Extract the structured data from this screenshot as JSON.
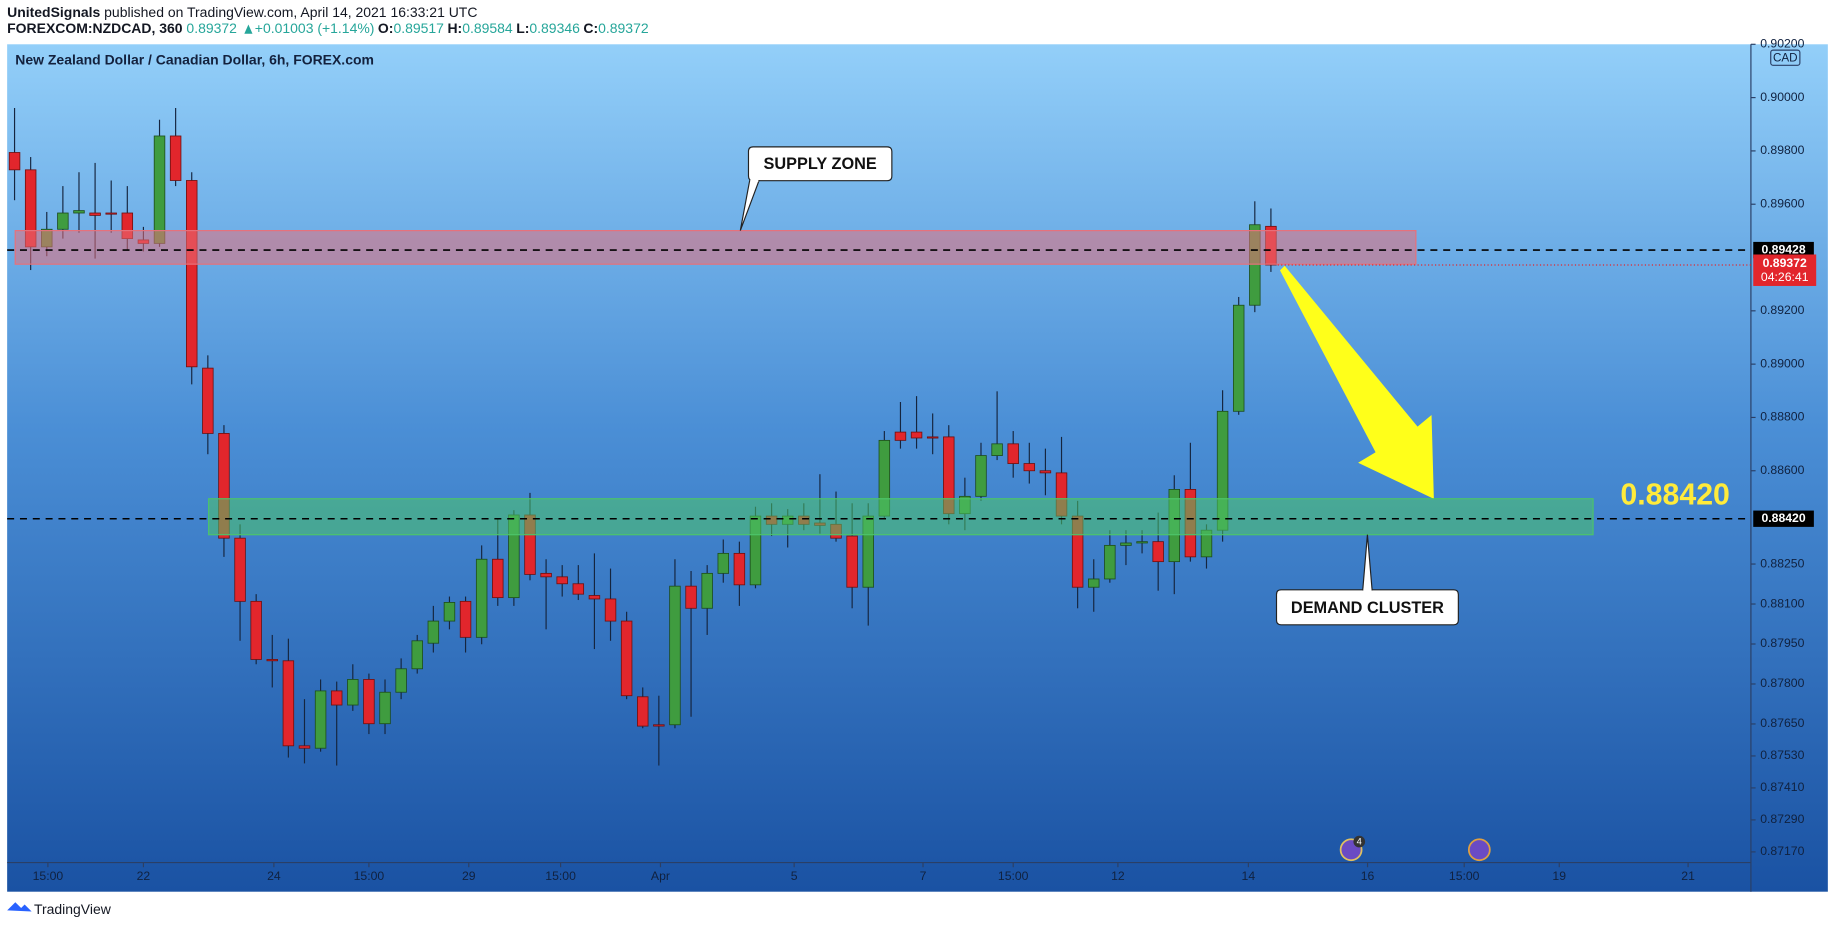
{
  "header": {
    "publisher": "UnitedSignals",
    "published": "published on TradingView.com, April 14, 2021 16:33:21 UTC",
    "symbol": "FOREXCOM:NZDCAD, 360",
    "last": "0.89372",
    "change": "+0.01003 (+1.14%)",
    "ohlc": [
      {
        "key": "O:",
        "value": "0.89517"
      },
      {
        "key": "H:",
        "value": "0.89584"
      },
      {
        "key": "L:",
        "value": "0.89346"
      },
      {
        "key": "C:",
        "value": "0.89372"
      }
    ]
  },
  "chart_data": {
    "type": "candlestick",
    "title": "New Zealand Dollar / Canadian Dollar, 6h, FOREX.com",
    "currency": "CAD",
    "up_color": "#3f9c3f",
    "down_color": "#e2262c",
    "open": [
      0.89794,
      0.89729,
      0.8944,
      0.89506,
      0.89567,
      0.89567,
      0.89567,
      0.89567,
      0.89466,
      0.89453,
      0.89856,
      0.89689,
      0.88985,
      0.8874,
      0.88347,
      0.8811,
      0.87892,
      0.87887,
      0.87568,
      0.87559,
      0.87774,
      0.87721,
      0.87817,
      0.87651,
      0.87769,
      0.87857,
      0.87953,
      0.88036,
      0.8811,
      0.87975,
      0.88268,
      0.88124,
      0.88434,
      0.88215,
      0.88202,
      0.88176,
      0.88132,
      0.88119,
      0.88036,
      0.87752,
      0.87647,
      0.87647,
      0.88167,
      0.88084,
      0.88215,
      0.8829,
      0.88172,
      0.8843,
      0.88399,
      0.8843,
      0.88404,
      0.88399,
      0.88355,
      0.88163,
      0.8843,
      0.88745,
      0.88745,
      0.88727,
      0.88727,
      0.88439,
      0.88504,
      0.88657,
      0.88701,
      0.88627,
      0.886,
      0.88592,
      0.8843,
      0.88163,
      0.88194,
      0.8832,
      0.88329,
      0.88334,
      0.88259,
      0.8853,
      0.88277,
      0.88377,
      0.88823,
      0.89221,
      0.89517
    ],
    "high": [
      0.89961,
      0.89777,
      0.89571,
      0.89668,
      0.8972,
      0.89755,
      0.89689,
      0.89668,
      0.89515,
      0.89917,
      0.89961,
      0.8972,
      0.89033,
      0.88771,
      0.88399,
      0.88137,
      0.87984,
      0.8797,
      0.87743,
      0.87817,
      0.87809,
      0.87874,
      0.87839,
      0.87817,
      0.87896,
      0.87984,
      0.88093,
      0.88128,
      0.88128,
      0.8832,
      0.88421,
      0.88452,
      0.88517,
      0.88268,
      0.88246,
      0.88246,
      0.8829,
      0.88233,
      0.88071,
      0.87787,
      0.87756,
      0.88268,
      0.88224,
      0.88246,
      0.88342,
      0.88334,
      0.88465,
      0.88478,
      0.88456,
      0.88478,
      0.88587,
      0.88522,
      0.88478,
      0.88478,
      0.88749,
      0.88858,
      0.8888,
      0.88815,
      0.88771,
      0.88574,
      0.88705,
      0.88898,
      0.88749,
      0.88705,
      0.88683,
      0.88727,
      0.88487,
      0.88268,
      0.88377,
      0.88377,
      0.88377,
      0.88443,
      0.88583,
      0.88705,
      0.88399,
      0.88902,
      0.89252,
      0.89611,
      0.89584
    ],
    "low": [
      0.89615,
      0.89353,
      0.89405,
      0.89471,
      0.89493,
      0.89396,
      0.89493,
      0.89427,
      0.89423,
      0.8944,
      0.89668,
      0.88924,
      0.88662,
      0.88277,
      0.87962,
      0.87874,
      0.87787,
      0.87524,
      0.87502,
      0.87546,
      0.87494,
      0.87699,
      0.87612,
      0.87612,
      0.87743,
      0.87839,
      0.87918,
      0.88005,
      0.87918,
      0.87949,
      0.88093,
      0.88093,
      0.88189,
      0.88005,
      0.88128,
      0.88115,
      0.87931,
      0.87962,
      0.87743,
      0.87634,
      0.87494,
      0.87634,
      0.87677,
      0.87984,
      0.8818,
      0.88093,
      0.88159,
      0.88355,
      0.88312,
      0.88377,
      0.88364,
      0.88334,
      0.88084,
      0.88019,
      0.88421,
      0.88683,
      0.88683,
      0.88662,
      0.88399,
      0.88377,
      0.88487,
      0.8864,
      0.88574,
      0.88552,
      0.88508,
      0.88399,
      0.88084,
      0.88071,
      0.8818,
      0.88246,
      0.8829,
      0.8815,
      0.88137,
      0.88259,
      0.88233,
      0.88334,
      0.8881,
      0.89195,
      0.89346
    ],
    "close": [
      0.89729,
      0.8944,
      0.89506,
      0.89567,
      0.89576,
      0.89558,
      0.89563,
      0.89471,
      0.89453,
      0.89856,
      0.89689,
      0.8899,
      0.8874,
      0.88347,
      0.8811,
      0.87892,
      0.87887,
      0.87568,
      0.87559,
      0.87774,
      0.87721,
      0.87817,
      0.87651,
      0.87769,
      0.87857,
      0.87962,
      0.88036,
      0.88106,
      0.87975,
      0.88268,
      0.88124,
      0.88434,
      0.88211,
      0.88202,
      0.88176,
      0.88137,
      0.88119,
      0.88036,
      0.87756,
      0.87642,
      0.87642,
      0.88167,
      0.88084,
      0.88215,
      0.8829,
      0.88172,
      0.8843,
      0.88399,
      0.8843,
      0.88399,
      0.88395,
      0.88347,
      0.88163,
      0.8843,
      0.88714,
      0.88714,
      0.88723,
      0.88723,
      0.88439,
      0.88504,
      0.88657,
      0.88701,
      0.88627,
      0.886,
      0.88592,
      0.8843,
      0.88163,
      0.88194,
      0.8832,
      0.88329,
      0.88334,
      0.88259,
      0.8853,
      0.88277,
      0.88377,
      0.88823,
      0.89221,
      0.89523,
      0.89372
    ],
    "xlim": [
      -0.46,
      107.8
    ],
    "xticks": [
      {
        "value": 2.07,
        "label": "15:00"
      },
      {
        "value": 8,
        "label": "22"
      },
      {
        "value": 16.1,
        "label": "24"
      },
      {
        "value": 22,
        "label": "15:00"
      },
      {
        "value": 28.2,
        "label": "29"
      },
      {
        "value": 33.9,
        "label": "15:00"
      },
      {
        "value": 40.1,
        "label": "Apr"
      },
      {
        "value": 48.4,
        "label": "5"
      },
      {
        "value": 56.4,
        "label": "7"
      },
      {
        "value": 62,
        "label": "15:00"
      },
      {
        "value": 68.5,
        "label": "12"
      },
      {
        "value": 76.6,
        "label": "14"
      },
      {
        "value": 84,
        "label": "16"
      },
      {
        "value": 90,
        "label": "15:00"
      },
      {
        "value": 95.9,
        "label": "19"
      },
      {
        "value": 103.9,
        "label": "21"
      }
    ],
    "ylim": [
      0.8713,
      0.902
    ],
    "yticks": [
      {
        "value": 0.902,
        "label": "0.90200"
      },
      {
        "value": 0.9,
        "label": "0.90000"
      },
      {
        "value": 0.898,
        "label": "0.89800"
      },
      {
        "value": 0.896,
        "label": "0.89600"
      },
      {
        "value": 0.892,
        "label": "0.89200"
      },
      {
        "value": 0.89,
        "label": "0.89000"
      },
      {
        "value": 0.888,
        "label": "0.88800"
      },
      {
        "value": 0.886,
        "label": "0.88600"
      },
      {
        "value": 0.8825,
        "label": "0.88250"
      },
      {
        "value": 0.881,
        "label": "0.88100"
      },
      {
        "value": 0.8795,
        "label": "0.87950"
      },
      {
        "value": 0.878,
        "label": "0.87800"
      },
      {
        "value": 0.8765,
        "label": "0.87650"
      },
      {
        "value": 0.8753,
        "label": "0.87530"
      },
      {
        "value": 0.8741,
        "label": "0.87410"
      },
      {
        "value": 0.8729,
        "label": "0.87290"
      },
      {
        "value": 0.8717,
        "label": "0.87170"
      }
    ],
    "zones": [
      {
        "label": "SUPPLY ZONE",
        "y": [
          0.89375,
          0.89501
        ],
        "x": [
          0.04,
          87
        ],
        "color": "#e8707a"
      },
      {
        "label": "DEMAND CLUSTER",
        "y": [
          0.8836,
          0.88495
        ],
        "x": [
          12.05,
          98
        ],
        "color": "#4cc46a"
      }
    ],
    "hlines": [
      {
        "value": 0.89428,
        "label": "0.89428"
      },
      {
        "value": 0.8842,
        "label": "0.88420"
      }
    ],
    "last_price": {
      "value": 0.89372,
      "label": "0.89372",
      "countdown": "04:26:41"
    },
    "events_badge": "4"
  },
  "footer": "TradingView"
}
